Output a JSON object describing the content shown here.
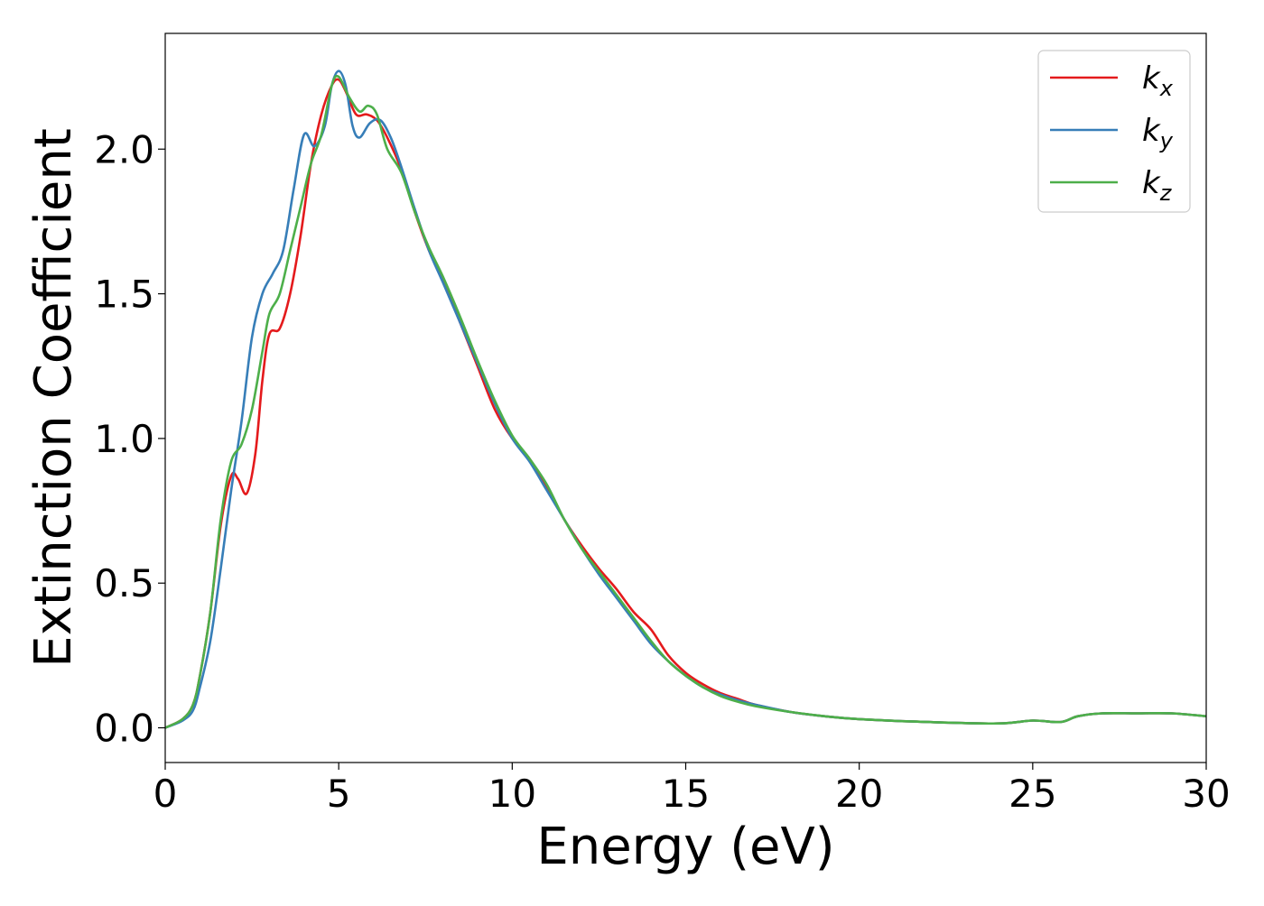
{
  "chart_data": {
    "type": "line",
    "title": "",
    "xlabel": "Energy (eV)",
    "ylabel": "Extinction Coefficient",
    "xlim": [
      0,
      30
    ],
    "ylim": [
      -0.12,
      2.4
    ],
    "x_ticks": [
      0,
      5,
      10,
      15,
      20,
      25,
      30
    ],
    "y_ticks": [
      0.0,
      0.5,
      1.0,
      1.5,
      2.0
    ],
    "grid": false,
    "legend_position": "top-right",
    "series": [
      {
        "name": "k_x",
        "label_base": "k",
        "label_sub": "x",
        "color": "#e41a1c",
        "points": [
          [
            0,
            0
          ],
          [
            0.5,
            0.03
          ],
          [
            0.8,
            0.08
          ],
          [
            1.0,
            0.18
          ],
          [
            1.3,
            0.4
          ],
          [
            1.6,
            0.7
          ],
          [
            1.9,
            0.87
          ],
          [
            2.1,
            0.86
          ],
          [
            2.35,
            0.81
          ],
          [
            2.6,
            0.95
          ],
          [
            2.8,
            1.2
          ],
          [
            3.0,
            1.36
          ],
          [
            3.3,
            1.38
          ],
          [
            3.6,
            1.5
          ],
          [
            3.9,
            1.7
          ],
          [
            4.2,
            1.95
          ],
          [
            4.5,
            2.12
          ],
          [
            4.8,
            2.22
          ],
          [
            5.0,
            2.24
          ],
          [
            5.2,
            2.2
          ],
          [
            5.5,
            2.12
          ],
          [
            5.8,
            2.12
          ],
          [
            6.1,
            2.1
          ],
          [
            6.4,
            2.04
          ],
          [
            6.8,
            1.93
          ],
          [
            7.2,
            1.78
          ],
          [
            7.6,
            1.65
          ],
          [
            8.0,
            1.55
          ],
          [
            8.5,
            1.4
          ],
          [
            9.0,
            1.25
          ],
          [
            9.5,
            1.1
          ],
          [
            10.0,
            1.0
          ],
          [
            10.5,
            0.93
          ],
          [
            11.0,
            0.83
          ],
          [
            11.5,
            0.72
          ],
          [
            12.0,
            0.63
          ],
          [
            12.5,
            0.55
          ],
          [
            13.0,
            0.48
          ],
          [
            13.5,
            0.4
          ],
          [
            14.0,
            0.34
          ],
          [
            14.5,
            0.25
          ],
          [
            15.0,
            0.19
          ],
          [
            15.5,
            0.15
          ],
          [
            16.0,
            0.12
          ],
          [
            16.5,
            0.1
          ],
          [
            17.0,
            0.08
          ],
          [
            18.0,
            0.055
          ],
          [
            19.0,
            0.04
          ],
          [
            20.0,
            0.03
          ],
          [
            22.0,
            0.02
          ],
          [
            24.0,
            0.015
          ],
          [
            25.0,
            0.025
          ],
          [
            25.8,
            0.02
          ],
          [
            26.3,
            0.04
          ],
          [
            27.0,
            0.05
          ],
          [
            28.0,
            0.05
          ],
          [
            29.0,
            0.05
          ],
          [
            30.0,
            0.04
          ]
        ]
      },
      {
        "name": "k_y",
        "label_base": "k",
        "label_sub": "y",
        "color": "#377eb8",
        "points": [
          [
            0,
            0
          ],
          [
            0.5,
            0.025
          ],
          [
            0.8,
            0.06
          ],
          [
            1.0,
            0.14
          ],
          [
            1.3,
            0.3
          ],
          [
            1.6,
            0.55
          ],
          [
            1.9,
            0.82
          ],
          [
            2.2,
            1.06
          ],
          [
            2.5,
            1.35
          ],
          [
            2.8,
            1.5
          ],
          [
            3.1,
            1.57
          ],
          [
            3.4,
            1.65
          ],
          [
            3.7,
            1.86
          ],
          [
            4.0,
            2.05
          ],
          [
            4.3,
            2.01
          ],
          [
            4.6,
            2.08
          ],
          [
            4.8,
            2.22
          ],
          [
            5.0,
            2.27
          ],
          [
            5.2,
            2.22
          ],
          [
            5.4,
            2.08
          ],
          [
            5.6,
            2.04
          ],
          [
            5.9,
            2.09
          ],
          [
            6.2,
            2.1
          ],
          [
            6.5,
            2.04
          ],
          [
            6.8,
            1.94
          ],
          [
            7.2,
            1.79
          ],
          [
            7.6,
            1.65
          ],
          [
            8.0,
            1.54
          ],
          [
            8.5,
            1.4
          ],
          [
            9.0,
            1.26
          ],
          [
            9.5,
            1.12
          ],
          [
            10.0,
            1.0
          ],
          [
            10.5,
            0.92
          ],
          [
            11.0,
            0.82
          ],
          [
            11.5,
            0.72
          ],
          [
            12.0,
            0.62
          ],
          [
            12.5,
            0.53
          ],
          [
            13.0,
            0.45
          ],
          [
            13.5,
            0.37
          ],
          [
            14.0,
            0.29
          ],
          [
            14.5,
            0.23
          ],
          [
            15.0,
            0.18
          ],
          [
            15.5,
            0.14
          ],
          [
            16.0,
            0.115
          ],
          [
            16.5,
            0.095
          ],
          [
            17.0,
            0.08
          ],
          [
            18.0,
            0.055
          ],
          [
            19.0,
            0.04
          ],
          [
            20.0,
            0.03
          ],
          [
            22.0,
            0.02
          ],
          [
            24.0,
            0.015
          ],
          [
            25.0,
            0.025
          ],
          [
            25.8,
            0.02
          ],
          [
            26.3,
            0.04
          ],
          [
            27.0,
            0.05
          ],
          [
            28.0,
            0.05
          ],
          [
            29.0,
            0.05
          ],
          [
            30.0,
            0.04
          ]
        ]
      },
      {
        "name": "k_z",
        "label_base": "k",
        "label_sub": "z",
        "color": "#4daf4a",
        "points": [
          [
            0,
            0
          ],
          [
            0.5,
            0.03
          ],
          [
            0.8,
            0.08
          ],
          [
            1.0,
            0.18
          ],
          [
            1.3,
            0.4
          ],
          [
            1.6,
            0.72
          ],
          [
            1.9,
            0.92
          ],
          [
            2.2,
            0.98
          ],
          [
            2.5,
            1.1
          ],
          [
            2.8,
            1.3
          ],
          [
            3.0,
            1.43
          ],
          [
            3.3,
            1.5
          ],
          [
            3.6,
            1.65
          ],
          [
            3.9,
            1.8
          ],
          [
            4.2,
            1.95
          ],
          [
            4.5,
            2.05
          ],
          [
            4.8,
            2.22
          ],
          [
            5.0,
            2.25
          ],
          [
            5.3,
            2.18
          ],
          [
            5.6,
            2.13
          ],
          [
            5.85,
            2.15
          ],
          [
            6.1,
            2.12
          ],
          [
            6.4,
            2.0
          ],
          [
            6.8,
            1.92
          ],
          [
            7.2,
            1.78
          ],
          [
            7.6,
            1.66
          ],
          [
            8.0,
            1.56
          ],
          [
            8.5,
            1.42
          ],
          [
            9.0,
            1.27
          ],
          [
            9.5,
            1.13
          ],
          [
            10.0,
            1.01
          ],
          [
            10.5,
            0.93
          ],
          [
            11.0,
            0.84
          ],
          [
            11.5,
            0.72
          ],
          [
            12.0,
            0.62
          ],
          [
            12.5,
            0.54
          ],
          [
            13.0,
            0.46
          ],
          [
            13.5,
            0.38
          ],
          [
            14.0,
            0.3
          ],
          [
            14.5,
            0.23
          ],
          [
            15.0,
            0.18
          ],
          [
            15.5,
            0.14
          ],
          [
            16.0,
            0.11
          ],
          [
            16.5,
            0.09
          ],
          [
            17.0,
            0.075
          ],
          [
            18.0,
            0.055
          ],
          [
            19.0,
            0.04
          ],
          [
            20.0,
            0.03
          ],
          [
            22.0,
            0.02
          ],
          [
            24.0,
            0.015
          ],
          [
            25.0,
            0.025
          ],
          [
            25.8,
            0.02
          ],
          [
            26.3,
            0.04
          ],
          [
            27.0,
            0.05
          ],
          [
            28.0,
            0.05
          ],
          [
            29.0,
            0.05
          ],
          [
            30.0,
            0.04
          ]
        ]
      }
    ]
  }
}
